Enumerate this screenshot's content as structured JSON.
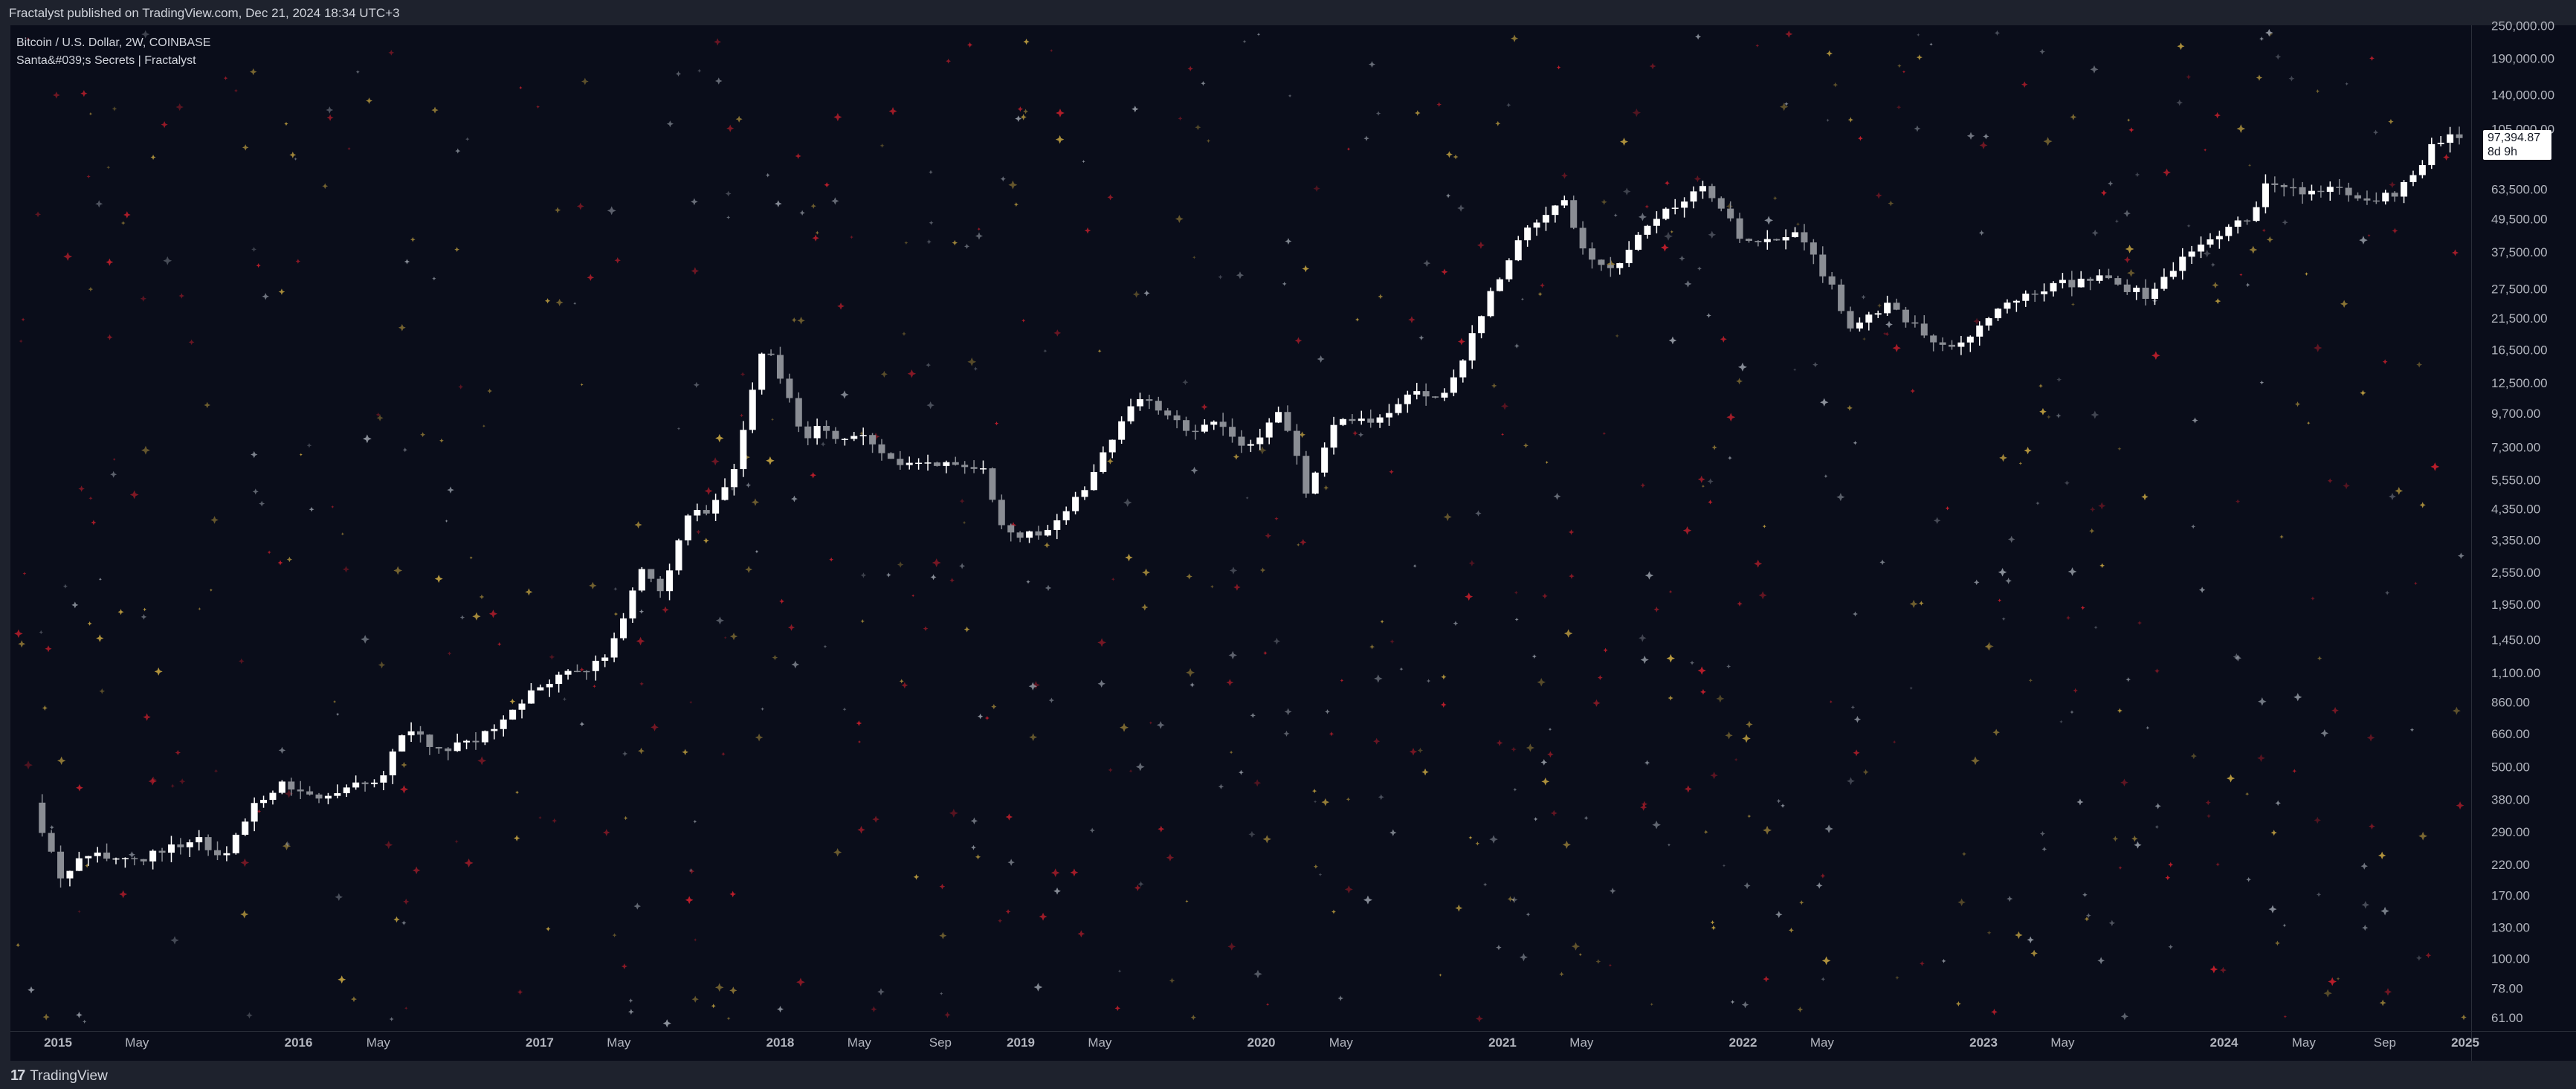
{
  "header": {
    "published": "Fractalyst published on TradingView.com, Dec 21, 2024 18:34 UTC+3"
  },
  "legend": {
    "symbol": "Bitcoin / U.S. Dollar, 2W, COINBASE",
    "indicator": "Santa&#039;s Secrets | Fractalyst"
  },
  "footer": {
    "brand": "TradingView",
    "logo_text": "17"
  },
  "last_price": {
    "value": "97,394.87",
    "countdown": "8d 9h",
    "price": 97394.87
  },
  "colors": {
    "background": "#0a0d1a",
    "candle_up": "#ffffff",
    "candle_down": "#8a8d94",
    "star_gold": "#c9a742",
    "star_red": "#d0202d",
    "star_gray": "#9aa0aa"
  },
  "chart_data": {
    "type": "candlestick",
    "title": "",
    "symbol": "BTCUSD",
    "interval": "2W",
    "scale": "log",
    "ylim": [
      61,
      250000
    ],
    "x_range": [
      "2014-12-01",
      "2025-01-15"
    ],
    "price_ticks": [
      {
        "value": 250000,
        "label": "250,000.00"
      },
      {
        "value": 190000,
        "label": "190,000.00"
      },
      {
        "value": 140000,
        "label": "140,000.00"
      },
      {
        "value": 105000,
        "label": "105,000.00"
      },
      {
        "value": 63500,
        "label": "63,500.00"
      },
      {
        "value": 49500,
        "label": "49,500.00"
      },
      {
        "value": 37500,
        "label": "37,500.00"
      },
      {
        "value": 27500,
        "label": "27,500.00"
      },
      {
        "value": 21500,
        "label": "21,500.00"
      },
      {
        "value": 16500,
        "label": "16,500.00"
      },
      {
        "value": 12500,
        "label": "12,500.00"
      },
      {
        "value": 9700,
        "label": "9,700.00"
      },
      {
        "value": 7300,
        "label": "7,300.00"
      },
      {
        "value": 5550,
        "label": "5,550.00"
      },
      {
        "value": 4350,
        "label": "4,350.00"
      },
      {
        "value": 3350,
        "label": "3,350.00"
      },
      {
        "value": 2550,
        "label": "2,550.00"
      },
      {
        "value": 1950,
        "label": "1,950.00"
      },
      {
        "value": 1450,
        "label": "1,450.00"
      },
      {
        "value": 1100,
        "label": "1,100.00"
      },
      {
        "value": 860,
        "label": "860.00"
      },
      {
        "value": 660,
        "label": "660.00"
      },
      {
        "value": 500,
        "label": "500.00"
      },
      {
        "value": 380,
        "label": "380.00"
      },
      {
        "value": 290,
        "label": "290.00"
      },
      {
        "value": 220,
        "label": "220.00"
      },
      {
        "value": 170,
        "label": "170.00"
      },
      {
        "value": 130,
        "label": "130.00"
      },
      {
        "value": 100,
        "label": "100.00"
      },
      {
        "value": 78,
        "label": "78.00"
      },
      {
        "value": 61,
        "label": "61.00"
      }
    ],
    "time_ticks": [
      {
        "date": "2015-01-01",
        "label": "2015",
        "major": true
      },
      {
        "date": "2015-05-01",
        "label": "May",
        "major": false
      },
      {
        "date": "2016-01-01",
        "label": "2016",
        "major": true
      },
      {
        "date": "2016-05-01",
        "label": "May",
        "major": false
      },
      {
        "date": "2017-01-01",
        "label": "2017",
        "major": true
      },
      {
        "date": "2017-05-01",
        "label": "May",
        "major": false
      },
      {
        "date": "2018-01-01",
        "label": "2018",
        "major": true
      },
      {
        "date": "2018-05-01",
        "label": "May",
        "major": false
      },
      {
        "date": "2018-09-01",
        "label": "Sep",
        "major": false
      },
      {
        "date": "2019-01-01",
        "label": "2019",
        "major": true
      },
      {
        "date": "2019-05-01",
        "label": "May",
        "major": false
      },
      {
        "date": "2020-01-01",
        "label": "2020",
        "major": true
      },
      {
        "date": "2020-05-01",
        "label": "May",
        "major": false
      },
      {
        "date": "2021-01-01",
        "label": "2021",
        "major": true
      },
      {
        "date": "2021-05-01",
        "label": "May",
        "major": false
      },
      {
        "date": "2022-01-01",
        "label": "2022",
        "major": true
      },
      {
        "date": "2022-05-01",
        "label": "May",
        "major": false
      },
      {
        "date": "2023-01-01",
        "label": "2023",
        "major": true
      },
      {
        "date": "2023-05-01",
        "label": "May",
        "major": false
      },
      {
        "date": "2024-01-01",
        "label": "2024",
        "major": true
      },
      {
        "date": "2024-05-01",
        "label": "May",
        "major": false
      },
      {
        "date": "2024-09-01",
        "label": "Sep",
        "major": false
      },
      {
        "date": "2025-01-01",
        "label": "2025",
        "major": true
      }
    ],
    "price_path": [
      [
        "2014-12-01",
        370
      ],
      [
        "2015-01-10",
        200
      ],
      [
        "2015-02-15",
        240
      ],
      [
        "2015-04-15",
        230
      ],
      [
        "2015-06-15",
        240
      ],
      [
        "2015-08-01",
        280
      ],
      [
        "2015-09-15",
        230
      ],
      [
        "2015-11-05",
        380
      ],
      [
        "2015-12-15",
        430
      ],
      [
        "2016-02-01",
        380
      ],
      [
        "2016-04-01",
        420
      ],
      [
        "2016-05-15",
        450
      ],
      [
        "2016-06-18",
        700
      ],
      [
        "2016-08-01",
        580
      ],
      [
        "2016-09-15",
        600
      ],
      [
        "2016-11-15",
        740
      ],
      [
        "2017-01-01",
        960
      ],
      [
        "2017-02-15",
        1100
      ],
      [
        "2017-03-20",
        1150
      ],
      [
        "2017-04-25",
        1300
      ],
      [
        "2017-06-10",
        2600
      ],
      [
        "2017-07-15",
        2200
      ],
      [
        "2017-08-20",
        4200
      ],
      [
        "2017-09-20",
        4100
      ],
      [
        "2017-11-01",
        6400
      ],
      [
        "2017-12-17",
        18000
      ],
      [
        "2018-01-15",
        12000
      ],
      [
        "2018-02-10",
        8000
      ],
      [
        "2018-03-10",
        8500
      ],
      [
        "2018-04-10",
        7500
      ],
      [
        "2018-05-10",
        8500
      ],
      [
        "2018-06-30",
        6200
      ],
      [
        "2018-08-01",
        6600
      ],
      [
        "2018-09-15",
        6400
      ],
      [
        "2018-11-10",
        6300
      ],
      [
        "2018-12-15",
        3500
      ],
      [
        "2019-02-01",
        3500
      ],
      [
        "2019-03-15",
        4000
      ],
      [
        "2019-04-15",
        5200
      ],
      [
        "2019-06-01",
        8500
      ],
      [
        "2019-06-30",
        11000
      ],
      [
        "2019-08-01",
        10500
      ],
      [
        "2019-09-25",
        8200
      ],
      [
        "2019-10-30",
        9200
      ],
      [
        "2019-12-15",
        7200
      ],
      [
        "2020-02-10",
        10000
      ],
      [
        "2020-03-15",
        5000
      ],
      [
        "2020-04-30",
        8800
      ],
      [
        "2020-06-30",
        9200
      ],
      [
        "2020-08-30",
        11500
      ],
      [
        "2020-10-15",
        11500
      ],
      [
        "2020-11-20",
        18000
      ],
      [
        "2020-12-30",
        29000
      ],
      [
        "2021-02-15",
        47000
      ],
      [
        "2021-04-10",
        58000
      ],
      [
        "2021-05-20",
        35000
      ],
      [
        "2021-07-01",
        33000
      ],
      [
        "2021-08-20",
        48000
      ],
      [
        "2021-10-20",
        60000
      ],
      [
        "2021-11-10",
        64000
      ],
      [
        "2022-01-10",
        41000
      ],
      [
        "2022-03-01",
        42000
      ],
      [
        "2022-04-01",
        45000
      ],
      [
        "2022-05-15",
        30000
      ],
      [
        "2022-06-20",
        20000
      ],
      [
        "2022-08-15",
        24000
      ],
      [
        "2022-10-01",
        19500
      ],
      [
        "2022-11-20",
        16500
      ],
      [
        "2023-01-20",
        22000
      ],
      [
        "2023-03-20",
        27000
      ],
      [
        "2023-05-01",
        28500
      ],
      [
        "2023-07-10",
        30000
      ],
      [
        "2023-09-10",
        26000
      ],
      [
        "2023-10-30",
        34000
      ],
      [
        "2023-12-15",
        42000
      ],
      [
        "2024-02-15",
        51000
      ],
      [
        "2024-03-15",
        67000
      ],
      [
        "2024-05-01",
        62000
      ],
      [
        "2024-06-15",
        65000
      ],
      [
        "2024-08-05",
        56000
      ],
      [
        "2024-09-15",
        60000
      ],
      [
        "2024-10-20",
        68000
      ],
      [
        "2024-11-15",
        90000
      ],
      [
        "2024-12-07",
        98000
      ],
      [
        "2024-12-21",
        97394.87
      ]
    ]
  }
}
